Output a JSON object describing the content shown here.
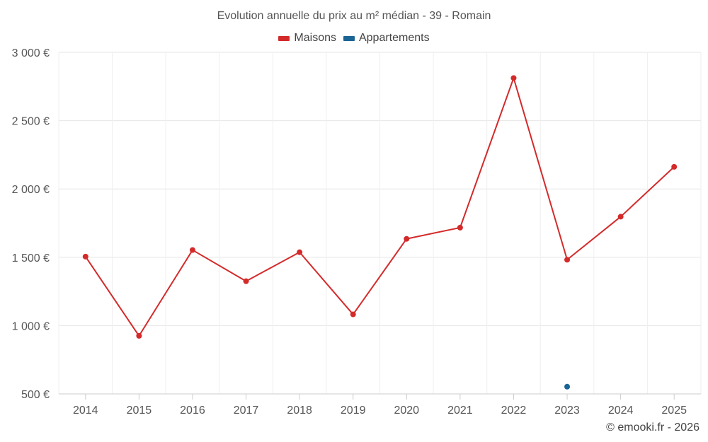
{
  "chart_data": {
    "type": "line",
    "title": "Evolution annuelle du prix au m² médian - 39 - Romain",
    "categories": [
      "2014",
      "2015",
      "2016",
      "2017",
      "2018",
      "2019",
      "2020",
      "2021",
      "2022",
      "2023",
      "2024",
      "2025"
    ],
    "y_ticks": [
      "500 €",
      "1 000 €",
      "1 500 €",
      "2 000 €",
      "2 500 €",
      "3 000 €"
    ],
    "ylim": [
      500,
      3000
    ],
    "grid": true,
    "legend_position": "top-center",
    "series": [
      {
        "name": "Maisons",
        "color": "#d42a2a",
        "values": [
          1505,
          925,
          1553,
          1325,
          1537,
          1082,
          1635,
          1717,
          2812,
          1482,
          1797,
          2162
        ]
      },
      {
        "name": "Appartements",
        "color": "#1a6496",
        "values": [
          null,
          null,
          null,
          null,
          null,
          null,
          null,
          null,
          null,
          553,
          null,
          null
        ]
      }
    ]
  },
  "credit": "© emooki.fr - 2026"
}
